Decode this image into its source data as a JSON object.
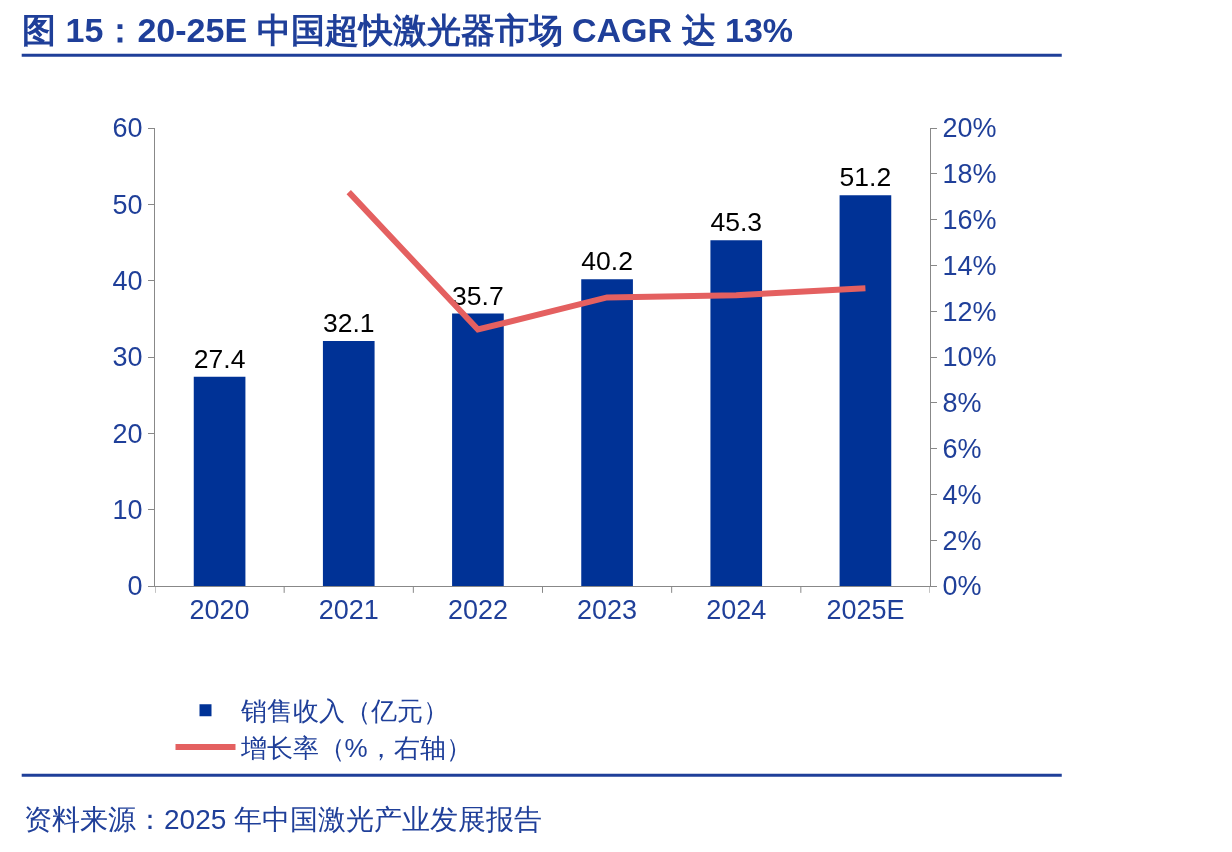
{
  "chart_data": {
    "type": "bar",
    "title": "图 15：20-25E 中国超快激光器市场 CAGR 达 13%",
    "categories": [
      "2020",
      "2021",
      "2022",
      "2023",
      "2024",
      "2025E"
    ],
    "series": [
      {
        "name": "销售收入（亿元）",
        "color": "#003296",
        "values": [
          27.4,
          32.1,
          35.7,
          40.2,
          45.3,
          51.2
        ],
        "value_labels": [
          "27.4",
          "32.1",
          "35.7",
          "40.2",
          "45.3",
          "51.2"
        ]
      },
      {
        "name": "增长率（%，右轴）",
        "type": "line",
        "axis": "y2",
        "color": "#e46060",
        "marker": "none",
        "line_style": "solid",
        "values": [
          null,
          17.2,
          11.2,
          12.6,
          12.7,
          13.0
        ]
      }
    ],
    "ylim": [
      0,
      60
    ],
    "yticks": [
      0,
      10,
      20,
      30,
      40,
      50,
      60
    ],
    "y2lim": [
      0,
      20
    ],
    "y2ticks": [
      {
        "value": 0,
        "label": "0%"
      },
      {
        "value": 2,
        "label": "2%"
      },
      {
        "value": 4,
        "label": "4%"
      },
      {
        "value": 6,
        "label": "6%"
      },
      {
        "value": 8,
        "label": "8%"
      },
      {
        "value": 10,
        "label": "10%"
      },
      {
        "value": 12,
        "label": "12%"
      },
      {
        "value": 14,
        "label": "14%"
      },
      {
        "value": 16,
        "label": "16%"
      },
      {
        "value": 18,
        "label": "18%"
      },
      {
        "value": 20,
        "label": "20%"
      }
    ],
    "legend": "bottom",
    "annotations": [
      "资料来源：2025 年中国激光产业发展报告"
    ]
  }
}
